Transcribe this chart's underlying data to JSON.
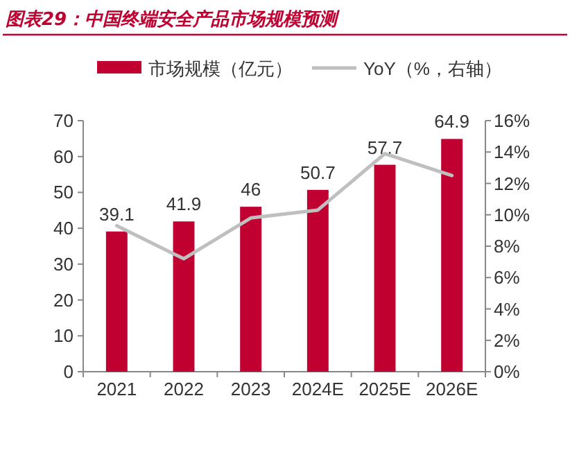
{
  "chart_data": {
    "type": "bar",
    "title": "图表29：中国终端安全产品市场规模预测",
    "categories": [
      "2021",
      "2022",
      "2023",
      "2024E",
      "2025E",
      "2026E"
    ],
    "series": [
      {
        "name": "市场规模（亿元）",
        "color": "#c00030",
        "values": [
          39.1,
          41.9,
          46,
          50.7,
          57.7,
          64.9
        ],
        "value_labels": [
          "39.1",
          "41.9",
          "46",
          "50.7",
          "57.7",
          "64.9"
        ]
      },
      {
        "name": "YoY（%，右轴）",
        "type": "line",
        "axis": "y2",
        "color": "#bfbfbf",
        "values": [
          9.3,
          7.2,
          9.8,
          10.3,
          13.9,
          12.5
        ]
      }
    ],
    "ylim": [
      0,
      70
    ],
    "yticks": [
      0,
      10,
      20,
      30,
      40,
      50,
      60,
      70
    ],
    "y2lim": [
      0,
      16
    ],
    "y2ticks": [
      {
        "value": 0,
        "label": "0%"
      },
      {
        "value": 2,
        "label": "2%"
      },
      {
        "value": 4,
        "label": "4%"
      },
      {
        "value": 6,
        "label": "6%"
      },
      {
        "value": 8,
        "label": "8%"
      },
      {
        "value": 10,
        "label": "10%"
      },
      {
        "value": 12,
        "label": "12%"
      },
      {
        "value": 14,
        "label": "14%"
      },
      {
        "value": 16,
        "label": "16%"
      }
    ],
    "legend": "top",
    "marker": "none"
  }
}
